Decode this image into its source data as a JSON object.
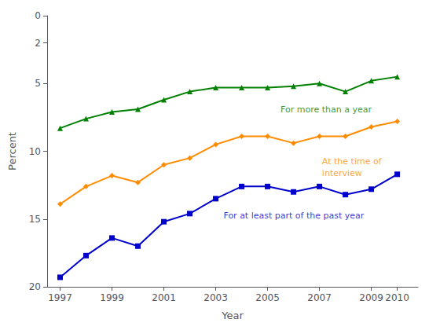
{
  "chart_data": {
    "type": "line",
    "x": [
      1997,
      1998,
      1999,
      2000,
      2001,
      2002,
      2003,
      2004,
      2005,
      2006,
      2007,
      2008,
      2009,
      2010
    ],
    "series": [
      {
        "color": "#0000CC",
        "marker": "square",
        "values": [
          19.3,
          17.7,
          16.4,
          17.0,
          15.2,
          14.6,
          13.5,
          12.6,
          12.6,
          13.0,
          12.6,
          13.2,
          12.8,
          11.7
        ]
      },
      {
        "color": "#FF8C00",
        "marker": "diamond",
        "values": [
          13.9,
          12.6,
          11.8,
          12.3,
          11.0,
          10.5,
          9.5,
          8.9,
          8.9,
          9.4,
          8.9,
          8.9,
          8.2,
          7.8
        ]
      },
      {
        "color": "#008000",
        "marker": "triangle",
        "values": [
          8.3,
          7.6,
          7.1,
          6.9,
          6.2,
          5.6,
          5.3,
          5.3,
          5.3,
          5.2,
          5.0,
          5.6,
          4.8,
          4.5
        ]
      }
    ],
    "xlabel": "Year",
    "ylabel": "Percent",
    "xlim": [
      1996.5,
      2010.8
    ],
    "xticks": [
      1997,
      1999,
      2001,
      2003,
      2005,
      2007,
      2009,
      2010
    ],
    "ylim": [
      20,
      0
    ],
    "yticks": [
      0,
      2,
      5,
      10,
      15,
      20
    ],
    "grid": false,
    "annotations": [
      {
        "text": "For at least part of the past year",
        "x": 2003.3,
        "y": 14.3,
        "color": "#0000CC"
      },
      {
        "text": "At the time of\ninterview",
        "x": 2007.1,
        "y": 10.3,
        "color": "#FF8C00"
      },
      {
        "text": "For more than a year",
        "x": 2005.5,
        "y": 6.5,
        "color": "#008000"
      }
    ]
  }
}
